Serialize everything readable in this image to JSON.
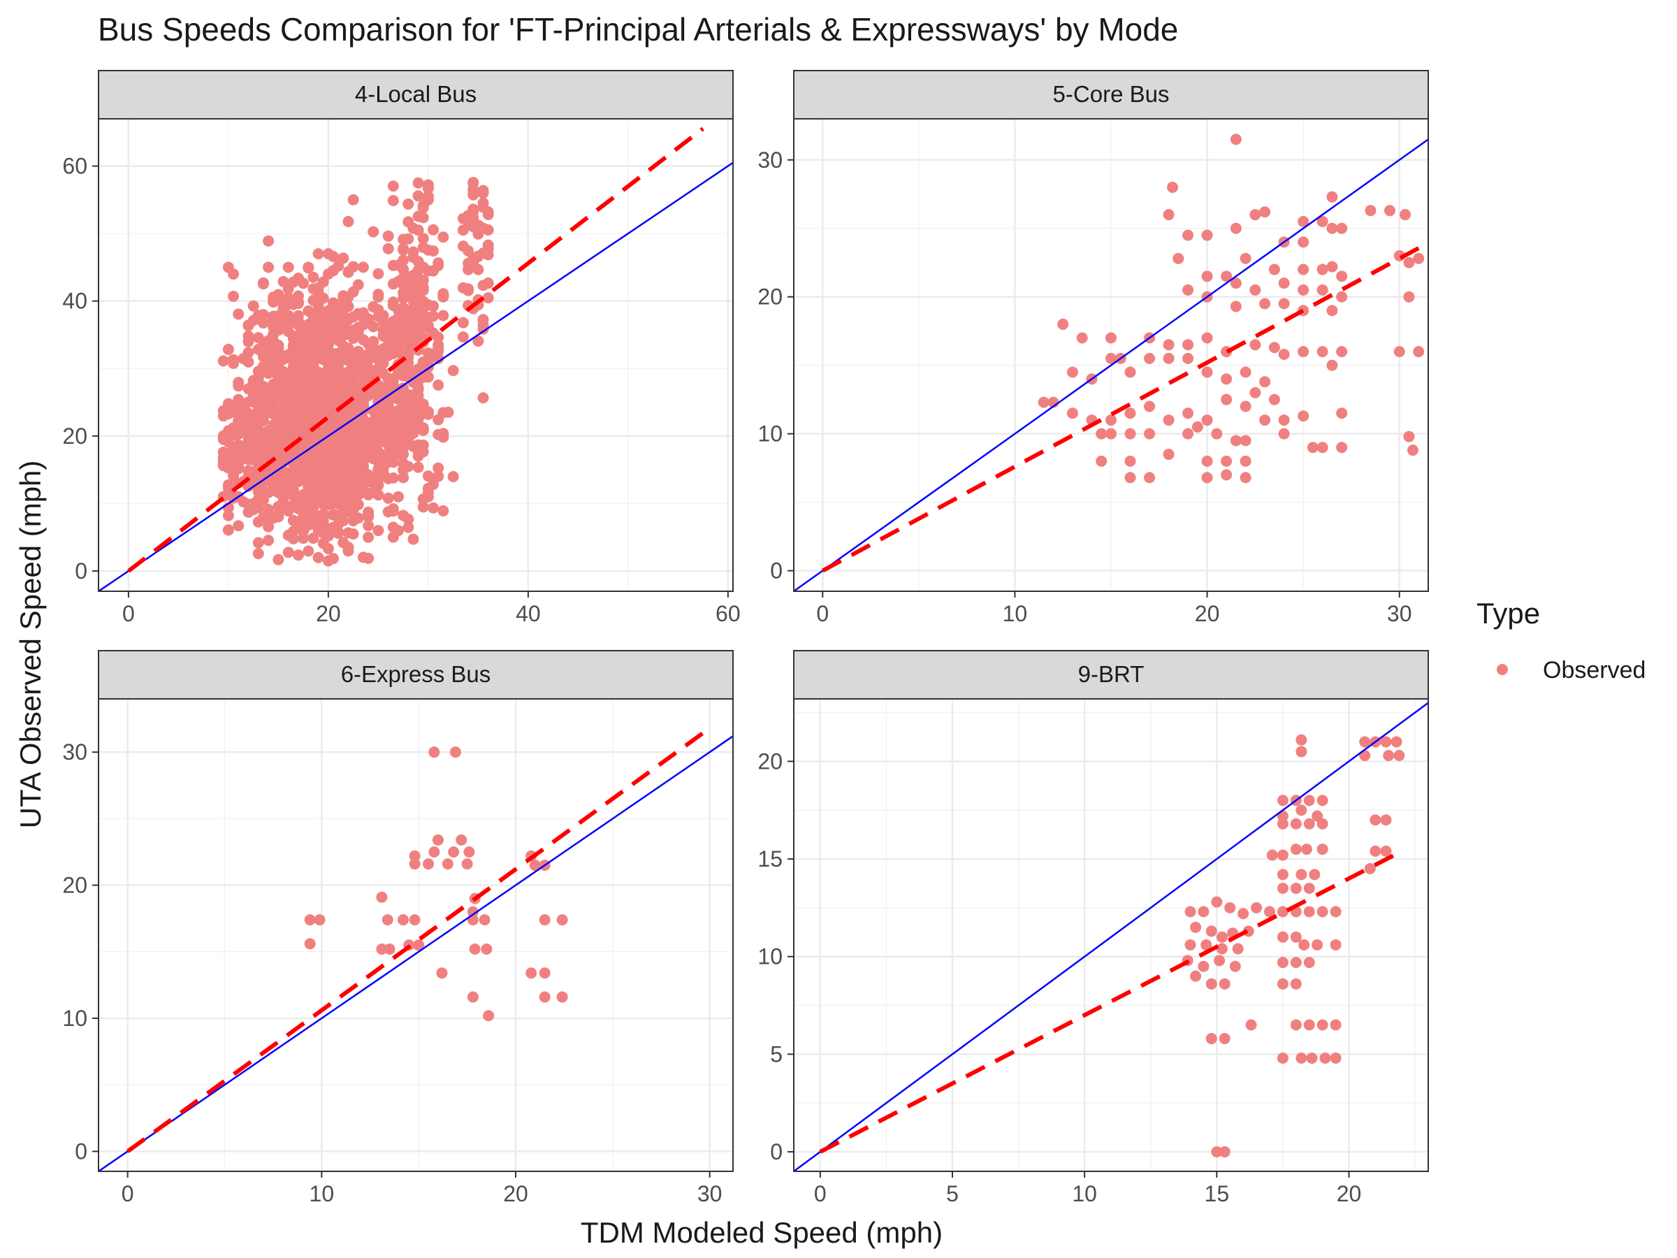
{
  "title": "Bus Speeds Comparison for 'FT-Principal Arterials & Expressways' by Mode",
  "xlabel": "TDM Modeled Speed (mph)",
  "ylabel": "UTA Observed Speed (mph)",
  "legend": {
    "title": "Type",
    "items": [
      {
        "label": "Observed",
        "color": "#F08080"
      }
    ]
  },
  "colors": {
    "points": "#F08080",
    "identity_line": "#0000FF",
    "fit_line": "#FF0000",
    "strip": "#D9D9D9"
  },
  "chart_data": [
    {
      "type": "scatter",
      "panel": "4-Local Bus",
      "xlim": [
        -3,
        60.5
      ],
      "ylim": [
        -3,
        67
      ],
      "xticks": [
        0,
        20,
        40,
        60
      ],
      "yticks": [
        0,
        20,
        40,
        60
      ],
      "identity_line": true,
      "fit_line": {
        "slope": 1.14,
        "x_range": [
          0,
          57.5
        ]
      },
      "clusters": [
        {
          "cx": 19,
          "cy": 20,
          "sx": 3.2,
          "sy": 8,
          "n": 1100
        },
        {
          "cx": 17.5,
          "cy": 33,
          "sx": 3,
          "sy": 6,
          "n": 260
        },
        {
          "cx": 12,
          "cy": 18,
          "sx": 2,
          "sy": 6,
          "n": 160
        },
        {
          "cx": 24.5,
          "cy": 28,
          "sx": 2.5,
          "sy": 9,
          "n": 220
        },
        {
          "cx": 28.5,
          "cy": 32,
          "sx": 1.5,
          "sy": 12,
          "n": 260
        },
        {
          "cx": 35,
          "cy": 47,
          "sx": 0.8,
          "sy": 7,
          "n": 60
        }
      ],
      "points": [
        [
          10,
          45
        ],
        [
          10.5,
          44
        ],
        [
          29,
          57.5
        ],
        [
          30,
          55
        ],
        [
          34.5,
          57.5
        ],
        [
          35.5,
          56
        ],
        [
          22.5,
          55
        ],
        [
          19,
          47
        ],
        [
          20,
          47
        ],
        [
          14,
          45
        ],
        [
          16,
          45
        ],
        [
          18,
          45
        ],
        [
          10.5,
          11
        ],
        [
          19,
          2
        ],
        [
          20,
          1.5
        ],
        [
          30,
          11
        ],
        [
          27,
          6
        ],
        [
          11,
          24
        ],
        [
          12,
          27
        ],
        [
          20,
          44
        ],
        [
          24,
          5
        ],
        [
          22,
          3
        ],
        [
          25,
          6
        ]
      ]
    },
    {
      "type": "scatter",
      "panel": "5-Core Bus",
      "xlim": [
        -1.5,
        31.5
      ],
      "ylim": [
        -1.5,
        33
      ],
      "xticks": [
        0,
        10,
        20,
        30
      ],
      "yticks": [
        0,
        10,
        20,
        30
      ],
      "identity_line": true,
      "fit_line": {
        "slope": 0.76,
        "x_range": [
          0,
          31
        ]
      },
      "points": [
        [
          21.5,
          31.5
        ],
        [
          18.2,
          28
        ],
        [
          25,
          25.5
        ],
        [
          26,
          25.5
        ],
        [
          26.5,
          27.3
        ],
        [
          28.5,
          26.3
        ],
        [
          29.5,
          26.3
        ],
        [
          30.3,
          26
        ],
        [
          18,
          26
        ],
        [
          19,
          24.5
        ],
        [
          20,
          24.5
        ],
        [
          21.5,
          25
        ],
        [
          22.5,
          26
        ],
        [
          23,
          26.2
        ],
        [
          24,
          24
        ],
        [
          25,
          24
        ],
        [
          26.5,
          25
        ],
        [
          27,
          25
        ],
        [
          18.5,
          22.8
        ],
        [
          20,
          21.5
        ],
        [
          21,
          21.5
        ],
        [
          22,
          22.8
        ],
        [
          23.5,
          22
        ],
        [
          25,
          22
        ],
        [
          26,
          22
        ],
        [
          26.5,
          22.2
        ],
        [
          27,
          21.5
        ],
        [
          30,
          23
        ],
        [
          30.5,
          22.5
        ],
        [
          21.5,
          21
        ],
        [
          22.5,
          20.5
        ],
        [
          24,
          21
        ],
        [
          25,
          20.5
        ],
        [
          26,
          20.5
        ],
        [
          27,
          20
        ],
        [
          30.5,
          20
        ],
        [
          31,
          22.8
        ],
        [
          19,
          20.5
        ],
        [
          20,
          20
        ],
        [
          21.5,
          19.3
        ],
        [
          23,
          19.5
        ],
        [
          24,
          19.5
        ],
        [
          25,
          19
        ],
        [
          26.5,
          19
        ],
        [
          12.5,
          18
        ],
        [
          13.5,
          17
        ],
        [
          15,
          17
        ],
        [
          17,
          17
        ],
        [
          18,
          16.5
        ],
        [
          19,
          16.5
        ],
        [
          20,
          17
        ],
        [
          21,
          16
        ],
        [
          22.5,
          16.5
        ],
        [
          23.5,
          16.3
        ],
        [
          25,
          16
        ],
        [
          26,
          16
        ],
        [
          27,
          16
        ],
        [
          30,
          16
        ],
        [
          31,
          16
        ],
        [
          11.5,
          12.3
        ],
        [
          12,
          12.3
        ],
        [
          13,
          14.5
        ],
        [
          14,
          14
        ],
        [
          15,
          15.5
        ],
        [
          15.5,
          15.5
        ],
        [
          16,
          14.5
        ],
        [
          17,
          15.5
        ],
        [
          18,
          15.5
        ],
        [
          19,
          15.5
        ],
        [
          20,
          14.5
        ],
        [
          21,
          14
        ],
        [
          22,
          14.5
        ],
        [
          23,
          13.8
        ],
        [
          24,
          15.8
        ],
        [
          26.5,
          15
        ],
        [
          13,
          11.5
        ],
        [
          14,
          11
        ],
        [
          15,
          11
        ],
        [
          16,
          10
        ],
        [
          16,
          11.5
        ],
        [
          17,
          12
        ],
        [
          18,
          11
        ],
        [
          19,
          11.5
        ],
        [
          20,
          11
        ],
        [
          21,
          12.5
        ],
        [
          22,
          12
        ],
        [
          22.5,
          13
        ],
        [
          23,
          11
        ],
        [
          24,
          11
        ],
        [
          25,
          11.3
        ],
        [
          27,
          11.5
        ],
        [
          14.5,
          10
        ],
        [
          15,
          10
        ],
        [
          17,
          10
        ],
        [
          19,
          10
        ],
        [
          19.5,
          10.5
        ],
        [
          20.5,
          10
        ],
        [
          21.5,
          9.5
        ],
        [
          22,
          9.5
        ],
        [
          25.5,
          9
        ],
        [
          26,
          9
        ],
        [
          27,
          9
        ],
        [
          30.5,
          9.8
        ],
        [
          30.7,
          8.8
        ],
        [
          14.5,
          8
        ],
        [
          16,
          8
        ],
        [
          18,
          8.5
        ],
        [
          20,
          8
        ],
        [
          21,
          8
        ],
        [
          22,
          8
        ],
        [
          16,
          6.8
        ],
        [
          17,
          6.8
        ],
        [
          20,
          6.8
        ],
        [
          21,
          7
        ],
        [
          22,
          6.8
        ],
        [
          24,
          10
        ],
        [
          23.5,
          12.5
        ]
      ]
    },
    {
      "type": "scatter",
      "panel": "6-Express Bus",
      "xlim": [
        -1.5,
        31.2
      ],
      "ylim": [
        -1.5,
        34
      ],
      "xticks": [
        0,
        10,
        20,
        30
      ],
      "yticks": [
        0,
        10,
        20,
        30
      ],
      "identity_line": true,
      "fit_line": {
        "slope": 1.06,
        "x_range": [
          0,
          30
        ]
      },
      "points": [
        [
          15.8,
          30
        ],
        [
          16.9,
          30
        ],
        [
          16,
          23.4
        ],
        [
          17.2,
          23.4
        ],
        [
          15.8,
          22.5
        ],
        [
          16.8,
          22.5
        ],
        [
          17.6,
          22.5
        ],
        [
          14.8,
          22.2
        ],
        [
          15.5,
          21.6
        ],
        [
          16.5,
          21.6
        ],
        [
          17.5,
          21.6
        ],
        [
          14.8,
          21.6
        ],
        [
          20.8,
          22.2
        ],
        [
          21,
          21.5
        ],
        [
          21.5,
          21.5
        ],
        [
          17.9,
          19
        ],
        [
          13.1,
          19.1
        ],
        [
          17.8,
          18
        ],
        [
          9.4,
          17.4
        ],
        [
          9.9,
          17.4
        ],
        [
          13.4,
          17.4
        ],
        [
          14.2,
          17.4
        ],
        [
          14.8,
          17.4
        ],
        [
          17.8,
          17.4
        ],
        [
          18.4,
          17.4
        ],
        [
          21.5,
          17.4
        ],
        [
          22.4,
          17.4
        ],
        [
          9.4,
          15.6
        ],
        [
          13.1,
          15.2
        ],
        [
          13.5,
          15.2
        ],
        [
          14.5,
          15.5
        ],
        [
          15,
          15.5
        ],
        [
          17.9,
          15.2
        ],
        [
          18.5,
          15.2
        ],
        [
          16.2,
          13.4
        ],
        [
          20.8,
          13.4
        ],
        [
          21.5,
          13.4
        ],
        [
          17.8,
          11.6
        ],
        [
          21.5,
          11.6
        ],
        [
          22.4,
          11.6
        ],
        [
          18.6,
          10.2
        ]
      ]
    },
    {
      "type": "scatter",
      "panel": "9-BRT",
      "xlim": [
        -1,
        23
      ],
      "ylim": [
        -1,
        23.2
      ],
      "xticks": [
        0,
        5,
        10,
        15,
        20
      ],
      "yticks": [
        0,
        5,
        10,
        15,
        20
      ],
      "identity_line": true,
      "fit_line": {
        "slope": 0.7,
        "x_range": [
          0,
          22
        ]
      },
      "points": [
        [
          20.6,
          21
        ],
        [
          21,
          21
        ],
        [
          21.4,
          21
        ],
        [
          21.8,
          21
        ],
        [
          20.6,
          20.3
        ],
        [
          21.5,
          20.3
        ],
        [
          21.9,
          20.3
        ],
        [
          18.2,
          21.1
        ],
        [
          18.2,
          20.5
        ],
        [
          17.5,
          18
        ],
        [
          18,
          18
        ],
        [
          18.5,
          18
        ],
        [
          19,
          18
        ],
        [
          17.5,
          17.2
        ],
        [
          18.2,
          17.5
        ],
        [
          18.8,
          17.2
        ],
        [
          21,
          17
        ],
        [
          21.4,
          17
        ],
        [
          17.5,
          16.8
        ],
        [
          18,
          16.8
        ],
        [
          18.5,
          16.8
        ],
        [
          19,
          16.8
        ],
        [
          17.1,
          15.2
        ],
        [
          17.5,
          15.2
        ],
        [
          18,
          15.5
        ],
        [
          18.4,
          15.5
        ],
        [
          19,
          15.5
        ],
        [
          21,
          15.4
        ],
        [
          21.4,
          15.4
        ],
        [
          17.5,
          14.2
        ],
        [
          18.2,
          14.2
        ],
        [
          18.7,
          14.2
        ],
        [
          20.8,
          14.5
        ],
        [
          17.5,
          13.5
        ],
        [
          18,
          13.5
        ],
        [
          18.5,
          13.5
        ],
        [
          16.5,
          12.5
        ],
        [
          17,
          12.3
        ],
        [
          17.5,
          12.3
        ],
        [
          18,
          12.3
        ],
        [
          18.5,
          12.3
        ],
        [
          19,
          12.3
        ],
        [
          19.5,
          12.3
        ],
        [
          14,
          12.3
        ],
        [
          14.5,
          12.3
        ],
        [
          15,
          12.8
        ],
        [
          15.5,
          12.5
        ],
        [
          16,
          12.2
        ],
        [
          14.2,
          11.5
        ],
        [
          14.8,
          11.3
        ],
        [
          15.2,
          11
        ],
        [
          15.6,
          11.2
        ],
        [
          16.2,
          11.3
        ],
        [
          17.5,
          11
        ],
        [
          18,
          11
        ],
        [
          14,
          10.6
        ],
        [
          14.6,
          10.6
        ],
        [
          15.2,
          10.4
        ],
        [
          15.8,
          10.4
        ],
        [
          18.3,
          10.6
        ],
        [
          18.8,
          10.6
        ],
        [
          19.5,
          10.6
        ],
        [
          13.9,
          9.8
        ],
        [
          14.5,
          9.5
        ],
        [
          15.1,
          9.8
        ],
        [
          15.7,
          9.5
        ],
        [
          17.5,
          9.7
        ],
        [
          18,
          9.7
        ],
        [
          18.5,
          9.7
        ],
        [
          14.2,
          9
        ],
        [
          14.8,
          8.6
        ],
        [
          15.3,
          8.6
        ],
        [
          17.5,
          8.6
        ],
        [
          18,
          8.6
        ],
        [
          14.8,
          5.8
        ],
        [
          15.3,
          5.8
        ],
        [
          16.3,
          6.5
        ],
        [
          18,
          6.5
        ],
        [
          18.5,
          6.5
        ],
        [
          19,
          6.5
        ],
        [
          19.5,
          6.5
        ],
        [
          17.5,
          4.8
        ],
        [
          18.2,
          4.8
        ],
        [
          18.6,
          4.8
        ],
        [
          19.1,
          4.8
        ],
        [
          19.5,
          4.8
        ],
        [
          15,
          0
        ],
        [
          15.3,
          0
        ]
      ]
    }
  ]
}
